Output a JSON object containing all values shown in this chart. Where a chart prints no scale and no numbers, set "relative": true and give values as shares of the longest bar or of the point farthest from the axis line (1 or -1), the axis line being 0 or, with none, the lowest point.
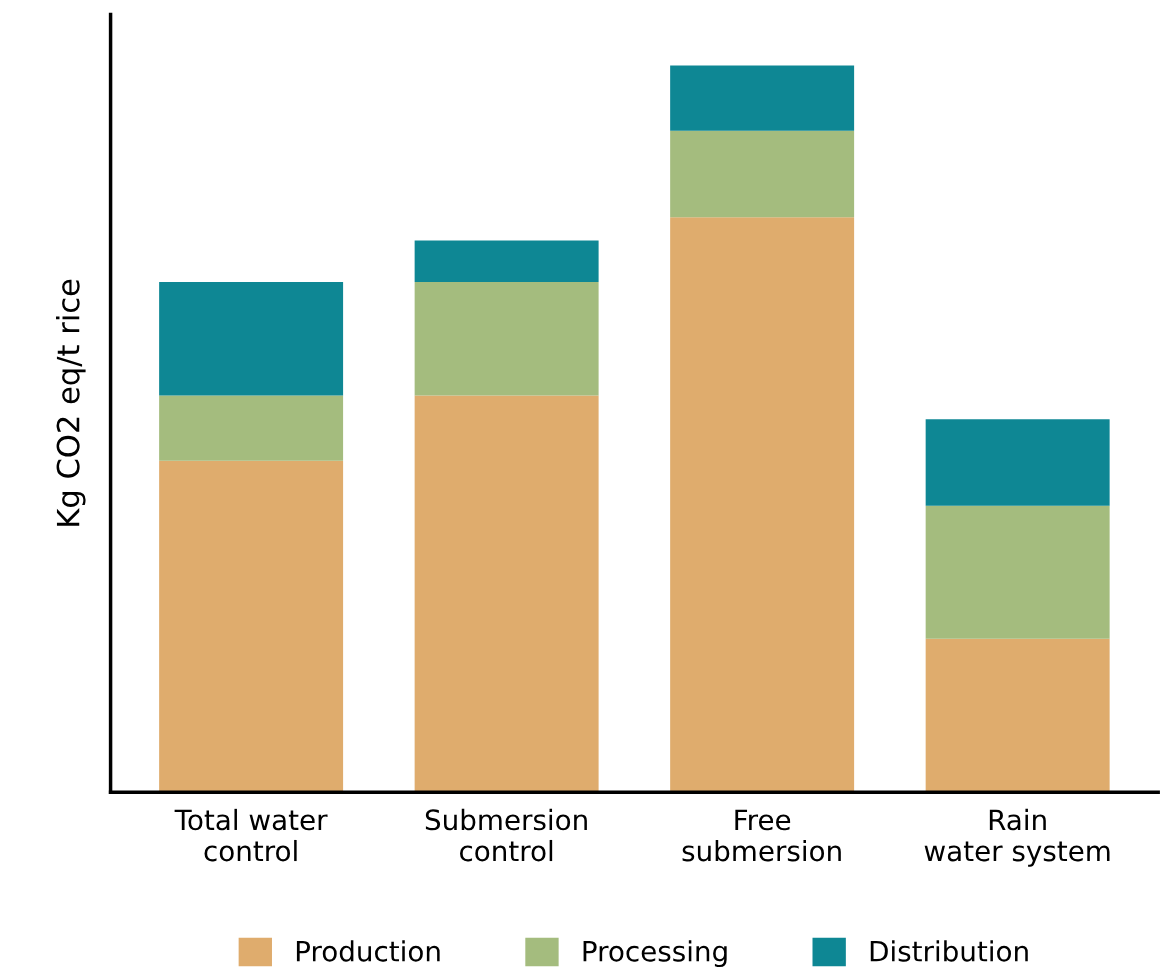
{
  "chart_data": {
    "type": "bar",
    "stacked": true,
    "relative": true,
    "ylabel": "Kg CO2 eq/t rice",
    "categories": [
      "Total water\ncontrol",
      "Submersion\ncontrol",
      "Free\nsubmersion",
      "Rain\nwater system"
    ],
    "series": [
      {
        "name": "Production",
        "color": "#dfac6d",
        "values": [
          0.456,
          0.546,
          0.791,
          0.211
        ]
      },
      {
        "name": "Processing",
        "color": "#a4bc7e",
        "values": [
          0.09,
          0.156,
          0.119,
          0.183
        ]
      },
      {
        "name": "Distribution",
        "color": "#0e8794",
        "values": [
          0.156,
          0.057,
          0.09,
          0.119
        ]
      }
    ],
    "legend": "bottom",
    "grid": false
  }
}
